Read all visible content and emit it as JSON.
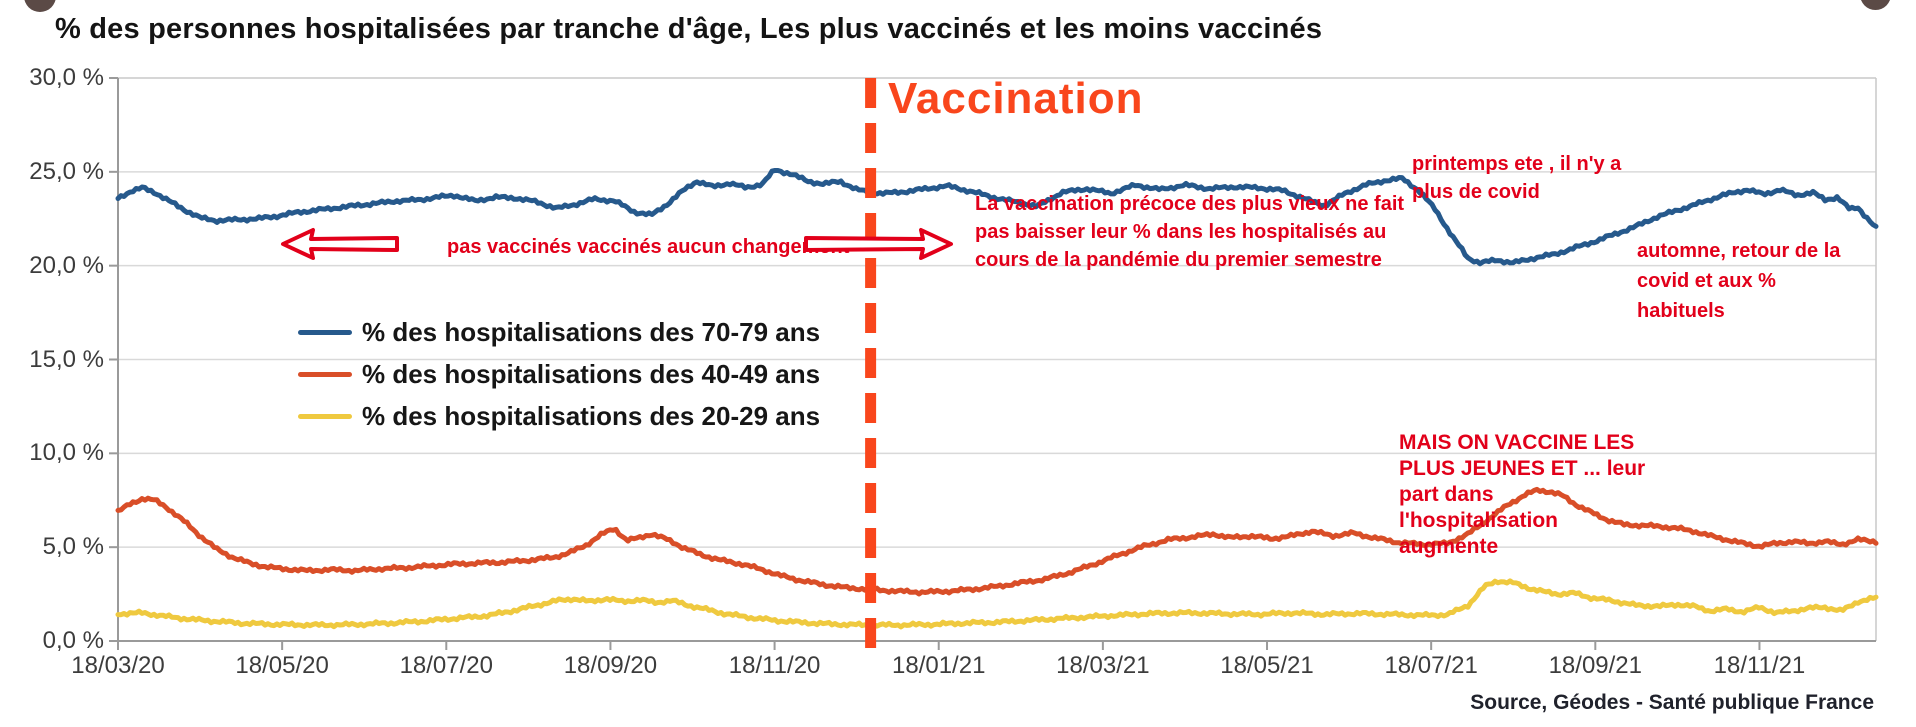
{
  "page": {
    "title": "% des personnes hospitalisées par tranche d'âge, Les plus vaccinés et les moins vaccinés"
  },
  "colors": {
    "series_70_79": "#26598C",
    "series_40_49": "#D94E28",
    "series_20_29": "#EFC93F",
    "vaccination": "#F9461C",
    "annotation_red": "#E2001A",
    "gridline": "#d9d9d9",
    "axis": "#9a9a9a",
    "border": "#c9c9c9",
    "tick_label": "#3c3c3c"
  },
  "vaccination_marker": {
    "label": "Vaccination",
    "month_position": 9.17
  },
  "annotations": {
    "no_change": {
      "text": "pas vaccinés vaccinés aucun changement"
    },
    "early_vax": {
      "lines": [
        "La vaccination précoce des plus vieux ne fait",
        "pas baisser leur % dans les hospitalisés au",
        "cours de la pandémie du premier semestre"
      ]
    },
    "spring": {
      "lines": [
        "printemps ete , il n'y a",
        "plus de covid"
      ]
    },
    "autumn": {
      "lines": [
        "automne, retour de la",
        "covid et aux %",
        "habituels"
      ]
    },
    "young": {
      "lines": [
        "MAIS ON VACCINE LES",
        "PLUS JEUNES ET ... leur",
        "part dans",
        "l'hospitalisation",
        "augmente"
      ]
    }
  },
  "legend": {
    "items": [
      {
        "label": "% des hospitalisations des 70-79 ans",
        "color": "#26598C"
      },
      {
        "label": "% des hospitalisations des 40-49 ans",
        "color": "#D94E28"
      },
      {
        "label": "% des hospitalisations des 20-29 ans",
        "color": "#EFC93F"
      }
    ]
  },
  "source": {
    "text": "Source, Géodes  - Santé publique France"
  },
  "chart_data": {
    "type": "line",
    "title": "% des personnes hospitalisées par tranche d'âge, Les plus vaccinés et les moins vaccinés",
    "xlabel": "",
    "ylabel": "",
    "x_unit": "months since 18/03/2020",
    "x_tick_months": [
      0,
      2,
      4,
      6,
      8,
      10,
      12,
      14,
      16,
      18,
      20
    ],
    "x_labels": [
      "18/03/20",
      "18/05/20",
      "18/07/20",
      "18/09/20",
      "18/11/20",
      "18/01/21",
      "18/03/21",
      "18/05/21",
      "18/07/21",
      "18/09/21",
      "18/11/21"
    ],
    "y_labels": [
      "30,0 %",
      "25,0 %",
      "20,0 %",
      "15,0 %",
      "10,0 %",
      "5,0 %",
      "0,0 %"
    ],
    "ylim": [
      0,
      30
    ],
    "xlim_months": [
      0,
      21.42
    ],
    "grid": true,
    "legend_position": "inside-left",
    "series": [
      {
        "name": "% des hospitalisations des 70-79 ans",
        "color": "#26598C",
        "points": [
          [
            0,
            23.6
          ],
          [
            0.15,
            23.95
          ],
          [
            0.3,
            24.15
          ],
          [
            0.45,
            23.9
          ],
          [
            0.6,
            23.5
          ],
          [
            0.8,
            23.0
          ],
          [
            1.0,
            22.55
          ],
          [
            1.2,
            22.4
          ],
          [
            1.45,
            22.45
          ],
          [
            1.7,
            22.5
          ],
          [
            1.95,
            22.65
          ],
          [
            2.2,
            22.85
          ],
          [
            2.5,
            23.0
          ],
          [
            2.8,
            23.15
          ],
          [
            3.1,
            23.3
          ],
          [
            3.4,
            23.45
          ],
          [
            3.65,
            23.5
          ],
          [
            3.9,
            23.65
          ],
          [
            4.1,
            23.75
          ],
          [
            4.35,
            23.45
          ],
          [
            4.6,
            23.65
          ],
          [
            4.85,
            23.6
          ],
          [
            5.1,
            23.4
          ],
          [
            5.35,
            23.05
          ],
          [
            5.6,
            23.3
          ],
          [
            5.8,
            23.55
          ],
          [
            6.05,
            23.45
          ],
          [
            6.3,
            22.85
          ],
          [
            6.5,
            22.7
          ],
          [
            6.7,
            23.3
          ],
          [
            6.9,
            24.05
          ],
          [
            7.05,
            24.5
          ],
          [
            7.25,
            24.2
          ],
          [
            7.45,
            24.4
          ],
          [
            7.65,
            24.15
          ],
          [
            7.85,
            24.35
          ],
          [
            8.0,
            25.1
          ],
          [
            8.2,
            24.9
          ],
          [
            8.4,
            24.5
          ],
          [
            8.6,
            24.35
          ],
          [
            8.8,
            24.5
          ],
          [
            9.0,
            24.05
          ],
          [
            9.17,
            23.9
          ],
          [
            9.35,
            23.85
          ],
          [
            9.6,
            23.95
          ],
          [
            9.85,
            24.1
          ],
          [
            10.1,
            24.25
          ],
          [
            10.4,
            23.95
          ],
          [
            10.7,
            23.6
          ],
          [
            11.0,
            23.35
          ],
          [
            11.2,
            23.15
          ],
          [
            11.5,
            23.9
          ],
          [
            11.8,
            24.1
          ],
          [
            12.1,
            23.85
          ],
          [
            12.4,
            24.3
          ],
          [
            12.7,
            24.05
          ],
          [
            13.0,
            24.3
          ],
          [
            13.3,
            24.1
          ],
          [
            13.6,
            24.2
          ],
          [
            13.9,
            24.15
          ],
          [
            14.2,
            24.0
          ],
          [
            14.5,
            23.5
          ],
          [
            14.7,
            23.2
          ],
          [
            14.95,
            23.85
          ],
          [
            15.2,
            24.3
          ],
          [
            15.45,
            24.55
          ],
          [
            15.65,
            24.65
          ],
          [
            15.85,
            24.0
          ],
          [
            16.05,
            23.0
          ],
          [
            16.25,
            21.6
          ],
          [
            16.45,
            20.4
          ],
          [
            16.6,
            20.15
          ],
          [
            16.8,
            20.3
          ],
          [
            17.0,
            20.15
          ],
          [
            17.15,
            20.3
          ],
          [
            17.3,
            20.45
          ],
          [
            17.5,
            20.6
          ],
          [
            17.75,
            20.95
          ],
          [
            18.0,
            21.3
          ],
          [
            18.25,
            21.7
          ],
          [
            18.5,
            22.1
          ],
          [
            18.75,
            22.6
          ],
          [
            19.0,
            22.95
          ],
          [
            19.25,
            23.3
          ],
          [
            19.55,
            23.75
          ],
          [
            19.85,
            24.05
          ],
          [
            20.05,
            23.8
          ],
          [
            20.25,
            24.05
          ],
          [
            20.45,
            23.75
          ],
          [
            20.65,
            23.9
          ],
          [
            20.8,
            23.5
          ],
          [
            20.95,
            23.65
          ],
          [
            21.1,
            23.0
          ],
          [
            21.2,
            23.1
          ],
          [
            21.3,
            22.6
          ],
          [
            21.42,
            22.0
          ]
        ]
      },
      {
        "name": "% des hospitalisations des 40-49 ans",
        "color": "#D94E28",
        "points": [
          [
            0,
            6.9
          ],
          [
            0.15,
            7.3
          ],
          [
            0.3,
            7.6
          ],
          [
            0.45,
            7.5
          ],
          [
            0.6,
            7.1
          ],
          [
            0.8,
            6.4
          ],
          [
            1.0,
            5.6
          ],
          [
            1.2,
            4.9
          ],
          [
            1.4,
            4.45
          ],
          [
            1.6,
            4.15
          ],
          [
            1.8,
            3.95
          ],
          [
            2.0,
            3.85
          ],
          [
            2.3,
            3.75
          ],
          [
            2.6,
            3.8
          ],
          [
            2.9,
            3.75
          ],
          [
            3.2,
            3.85
          ],
          [
            3.5,
            3.9
          ],
          [
            3.8,
            4.0
          ],
          [
            4.1,
            4.1
          ],
          [
            4.4,
            4.15
          ],
          [
            4.7,
            4.2
          ],
          [
            5.0,
            4.3
          ],
          [
            5.3,
            4.45
          ],
          [
            5.5,
            4.7
          ],
          [
            5.7,
            5.1
          ],
          [
            5.9,
            5.7
          ],
          [
            6.05,
            6.0
          ],
          [
            6.2,
            5.35
          ],
          [
            6.35,
            5.5
          ],
          [
            6.5,
            5.7
          ],
          [
            6.7,
            5.4
          ],
          [
            6.9,
            4.95
          ],
          [
            7.1,
            4.6
          ],
          [
            7.35,
            4.3
          ],
          [
            7.6,
            4.1
          ],
          [
            7.85,
            3.8
          ],
          [
            8.1,
            3.45
          ],
          [
            8.35,
            3.2
          ],
          [
            8.6,
            3.0
          ],
          [
            8.85,
            2.85
          ],
          [
            9.17,
            2.75
          ],
          [
            9.5,
            2.65
          ],
          [
            9.8,
            2.6
          ],
          [
            10.1,
            2.65
          ],
          [
            10.4,
            2.75
          ],
          [
            10.7,
            2.9
          ],
          [
            11.0,
            3.1
          ],
          [
            11.3,
            3.3
          ],
          [
            11.6,
            3.65
          ],
          [
            11.9,
            4.1
          ],
          [
            12.2,
            4.6
          ],
          [
            12.5,
            5.05
          ],
          [
            12.8,
            5.4
          ],
          [
            13.1,
            5.55
          ],
          [
            13.35,
            5.7
          ],
          [
            13.55,
            5.5
          ],
          [
            13.8,
            5.6
          ],
          [
            14.05,
            5.45
          ],
          [
            14.3,
            5.6
          ],
          [
            14.55,
            5.85
          ],
          [
            14.8,
            5.6
          ],
          [
            15.05,
            5.75
          ],
          [
            15.3,
            5.5
          ],
          [
            15.6,
            5.25
          ],
          [
            15.9,
            5.15
          ],
          [
            16.2,
            5.2
          ],
          [
            16.45,
            5.7
          ],
          [
            16.7,
            6.5
          ],
          [
            16.95,
            7.3
          ],
          [
            17.15,
            7.8
          ],
          [
            17.3,
            8.05
          ],
          [
            17.45,
            7.95
          ],
          [
            17.6,
            7.75
          ],
          [
            17.75,
            7.3
          ],
          [
            17.95,
            6.85
          ],
          [
            18.15,
            6.45
          ],
          [
            18.35,
            6.2
          ],
          [
            18.6,
            6.15
          ],
          [
            18.8,
            6.1
          ],
          [
            19.0,
            6.0
          ],
          [
            19.2,
            5.85
          ],
          [
            19.4,
            5.6
          ],
          [
            19.6,
            5.4
          ],
          [
            19.8,
            5.2
          ],
          [
            20.0,
            5.05
          ],
          [
            20.2,
            5.2
          ],
          [
            20.4,
            5.3
          ],
          [
            20.6,
            5.2
          ],
          [
            20.8,
            5.3
          ],
          [
            21.0,
            5.15
          ],
          [
            21.2,
            5.4
          ],
          [
            21.42,
            5.3
          ]
        ]
      },
      {
        "name": "% des hospitalisations des 20-29 ans",
        "color": "#EFC93F",
        "points": [
          [
            0,
            1.45
          ],
          [
            0.3,
            1.5
          ],
          [
            0.6,
            1.3
          ],
          [
            0.9,
            1.15
          ],
          [
            1.2,
            1.05
          ],
          [
            1.5,
            0.95
          ],
          [
            1.8,
            0.9
          ],
          [
            2.1,
            0.87
          ],
          [
            2.5,
            0.85
          ],
          [
            2.9,
            0.88
          ],
          [
            3.3,
            0.95
          ],
          [
            3.7,
            1.05
          ],
          [
            4.1,
            1.2
          ],
          [
            4.5,
            1.35
          ],
          [
            4.8,
            1.6
          ],
          [
            5.1,
            1.9
          ],
          [
            5.35,
            2.15
          ],
          [
            5.55,
            2.25
          ],
          [
            5.75,
            2.1
          ],
          [
            5.95,
            2.25
          ],
          [
            6.15,
            2.1
          ],
          [
            6.35,
            2.2
          ],
          [
            6.55,
            2.05
          ],
          [
            6.75,
            2.15
          ],
          [
            6.95,
            1.9
          ],
          [
            7.15,
            1.7
          ],
          [
            7.4,
            1.45
          ],
          [
            7.7,
            1.25
          ],
          [
            8.0,
            1.1
          ],
          [
            8.3,
            1.0
          ],
          [
            8.6,
            0.92
          ],
          [
            8.9,
            0.87
          ],
          [
            9.17,
            0.85
          ],
          [
            9.5,
            0.85
          ],
          [
            9.9,
            0.88
          ],
          [
            10.3,
            0.95
          ],
          [
            10.7,
            1.0
          ],
          [
            11.1,
            1.1
          ],
          [
            11.5,
            1.2
          ],
          [
            11.9,
            1.3
          ],
          [
            12.3,
            1.4
          ],
          [
            12.7,
            1.48
          ],
          [
            13.1,
            1.5
          ],
          [
            13.5,
            1.45
          ],
          [
            13.9,
            1.42
          ],
          [
            14.3,
            1.5
          ],
          [
            14.7,
            1.42
          ],
          [
            15.1,
            1.47
          ],
          [
            15.5,
            1.42
          ],
          [
            15.9,
            1.37
          ],
          [
            16.2,
            1.4
          ],
          [
            16.45,
            1.9
          ],
          [
            16.65,
            2.9
          ],
          [
            16.8,
            3.2
          ],
          [
            17.0,
            3.1
          ],
          [
            17.2,
            2.8
          ],
          [
            17.4,
            2.6
          ],
          [
            17.55,
            2.5
          ],
          [
            17.75,
            2.55
          ],
          [
            17.95,
            2.3
          ],
          [
            18.2,
            2.15
          ],
          [
            18.5,
            1.9
          ],
          [
            18.8,
            1.85
          ],
          [
            19.0,
            1.95
          ],
          [
            19.2,
            1.85
          ],
          [
            19.4,
            1.6
          ],
          [
            19.6,
            1.7
          ],
          [
            19.8,
            1.55
          ],
          [
            20.0,
            1.8
          ],
          [
            20.2,
            1.5
          ],
          [
            20.4,
            1.6
          ],
          [
            20.6,
            1.75
          ],
          [
            20.8,
            1.8
          ],
          [
            21.0,
            1.6
          ],
          [
            21.2,
            2.1
          ],
          [
            21.42,
            2.3
          ]
        ]
      }
    ],
    "annotation_marker": {
      "label": "Vaccination",
      "type": "vertical-dashed-line",
      "month": 9.17
    }
  }
}
